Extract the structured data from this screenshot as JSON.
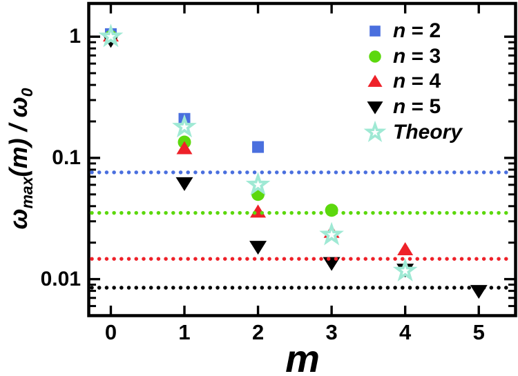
{
  "figure": {
    "background": "#ffffff"
  },
  "axes": {
    "x_title": "m",
    "y_title": {
      "omega1": "ω",
      "sub1": "max",
      "mid": "(m) / ",
      "omega2": "ω",
      "sub2": "0"
    }
  },
  "chart_data": {
    "type": "scatter",
    "title": "",
    "xlabel": "m",
    "ylabel": "ω_max(m) / ω_0",
    "grid": "off",
    "legend_position": "top-right-inside",
    "x_axis": {
      "min": -0.3,
      "max": 5.5,
      "ticks": [
        0,
        1,
        2,
        3,
        4,
        5
      ],
      "tick_labels": [
        "0",
        "1",
        "2",
        "3",
        "4",
        "5"
      ]
    },
    "y_axis": {
      "scale": "log",
      "min": 0.005,
      "max": 1.88,
      "ticks": [
        1,
        0.1,
        0.01
      ],
      "tick_labels": [
        "1",
        "0.1",
        "0.01"
      ],
      "minor_ticks": [
        0.9,
        0.8,
        0.7,
        0.6,
        0.5,
        0.4,
        0.3,
        0.2,
        0.09,
        0.08,
        0.07,
        0.06,
        0.05,
        0.04,
        0.03,
        0.02,
        0.009,
        0.008,
        0.007,
        0.006,
        0.005
      ]
    },
    "series": [
      {
        "id": "n2",
        "name": "n = 2",
        "legend": {
          "italic": "n",
          "rest": " = 2"
        },
        "marker": "square",
        "color": "#4a6fde",
        "x": [
          0,
          1,
          2
        ],
        "y": [
          1.05,
          0.21,
          0.123
        ]
      },
      {
        "id": "n3",
        "name": "n = 3",
        "legend": {
          "italic": "n",
          "rest": " = 3"
        },
        "marker": "circle",
        "color": "#5cd80d",
        "x": [
          0,
          1,
          2,
          3
        ],
        "y": [
          1.0,
          0.135,
          0.05,
          0.037
        ]
      },
      {
        "id": "n4",
        "name": "n = 4",
        "legend": {
          "italic": "n",
          "rest": " = 4"
        },
        "marker": "triangle-up",
        "color": "#ee2129",
        "x": [
          0,
          1,
          2,
          3,
          4
        ],
        "y": [
          1.02,
          0.12,
          0.036,
          0.0245,
          0.0176
        ]
      },
      {
        "id": "n5",
        "name": "n = 5",
        "legend": {
          "italic": "n",
          "rest": " = 5"
        },
        "marker": "triangle-down",
        "color": "#000000",
        "x": [
          0,
          1,
          2,
          3,
          4,
          5
        ],
        "y": [
          0.94,
          0.062,
          0.0185,
          0.0136,
          0.012,
          0.008
        ]
      },
      {
        "id": "theory",
        "name": "Theory",
        "legend": {
          "italic": "Theory",
          "rest": ""
        },
        "marker": "star",
        "color": "#9fe9d4",
        "x": [
          0,
          1,
          2,
          3,
          4
        ],
        "y": [
          1.0,
          0.18,
          0.06,
          0.0232,
          0.0117
        ]
      }
    ],
    "asymptote_lines": [
      {
        "series_id": "n2",
        "value": 0.076,
        "color": "#4a6fde"
      },
      {
        "series_id": "n3",
        "value": 0.0352,
        "color": "#5cd80d"
      },
      {
        "series_id": "n4",
        "value": 0.0147,
        "color": "#ee2129"
      },
      {
        "series_id": "n5",
        "value": 0.0085,
        "color": "#000000"
      }
    ]
  }
}
